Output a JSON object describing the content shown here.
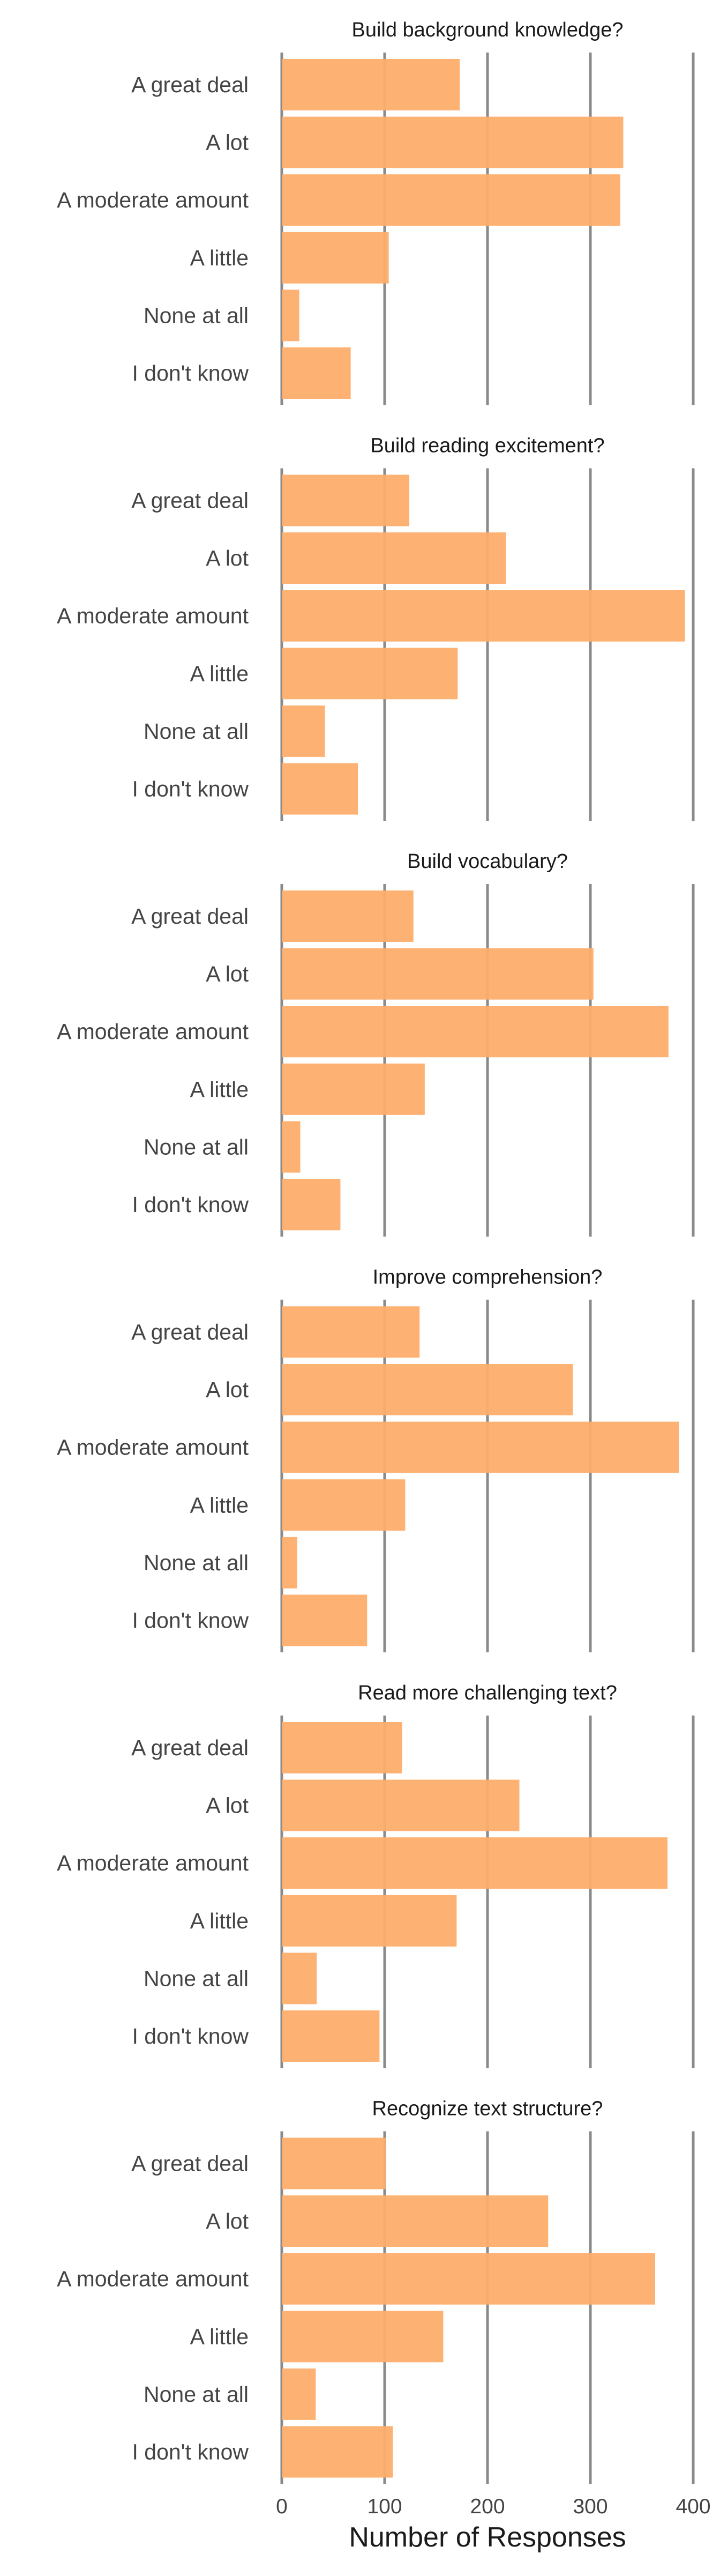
{
  "chart_data": {
    "type": "bar",
    "orientation": "horizontal",
    "xlabel": "Number of Responses",
    "xlim": [
      0,
      400
    ],
    "xticks": [
      0,
      100,
      200,
      300,
      400
    ],
    "grid": "vertical",
    "bar_color": "#fdae6b",
    "categories": [
      "A great deal",
      "A lot",
      "A moderate amount",
      "A little",
      "None at all",
      "I don't know"
    ],
    "panels": [
      {
        "title": "Build background knowledge?",
        "values": [
          173,
          332,
          329,
          104,
          17,
          67
        ]
      },
      {
        "title": "Build reading excitement?",
        "values": [
          124,
          218,
          392,
          171,
          42,
          74
        ]
      },
      {
        "title": "Build vocabulary?",
        "values": [
          128,
          303,
          376,
          139,
          18,
          57
        ]
      },
      {
        "title": "Improve comprehension?",
        "values": [
          134,
          283,
          386,
          120,
          15,
          83
        ]
      },
      {
        "title": "Read more challenging text?",
        "values": [
          117,
          231,
          375,
          170,
          34,
          95
        ]
      },
      {
        "title": "Recognize text structure?",
        "values": [
          101,
          259,
          363,
          157,
          33,
          108
        ]
      }
    ]
  }
}
